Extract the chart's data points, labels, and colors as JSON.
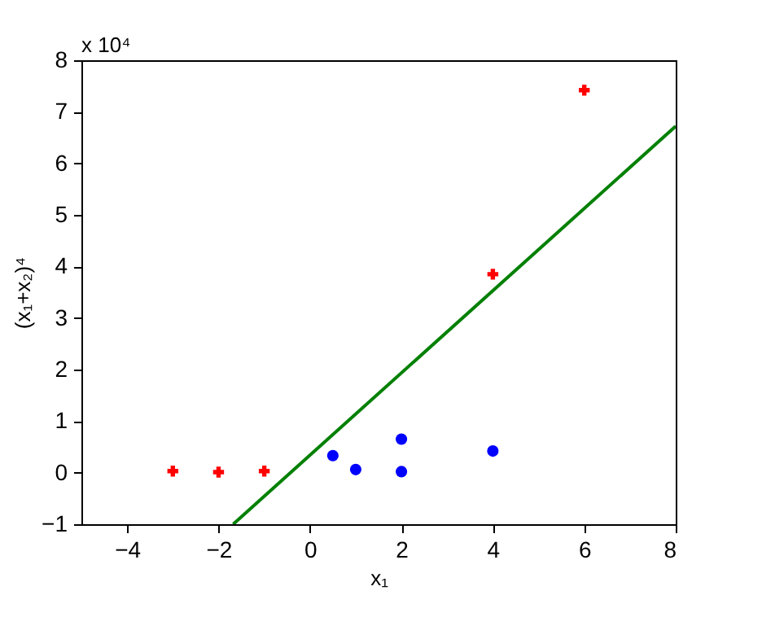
{
  "chart_data": {
    "type": "scatter",
    "xlabel": "x₁",
    "ylabel": "(x₁+x₂)⁴",
    "annotations": [
      "x 10⁴"
    ],
    "xlim": [
      -5,
      8
    ],
    "xticks": [
      -4,
      -2,
      0,
      2,
      4,
      6,
      8
    ],
    "ylim": [
      -1,
      8
    ],
    "yticks": [
      -1,
      0,
      1,
      2,
      3,
      4,
      5,
      6,
      7,
      8
    ],
    "grid": false,
    "series": [
      {
        "marker": "cross",
        "color": "#ff0000",
        "x": [
          -3,
          -2,
          -1,
          4,
          6
        ],
        "values": [
          0.03,
          0.01,
          0.03,
          3.85,
          7.42
        ]
      },
      {
        "marker": "circle",
        "color": "#0000ff",
        "x": [
          0.5,
          1,
          2,
          2,
          4
        ],
        "values": [
          0.33,
          0.06,
          0.65,
          0.02,
          0.42
        ]
      },
      {
        "type": "line",
        "line_style": "solid",
        "color": "#008000",
        "x": [
          -1.68,
          8
        ],
        "values": [
          -1,
          6.72
        ]
      }
    ]
  }
}
